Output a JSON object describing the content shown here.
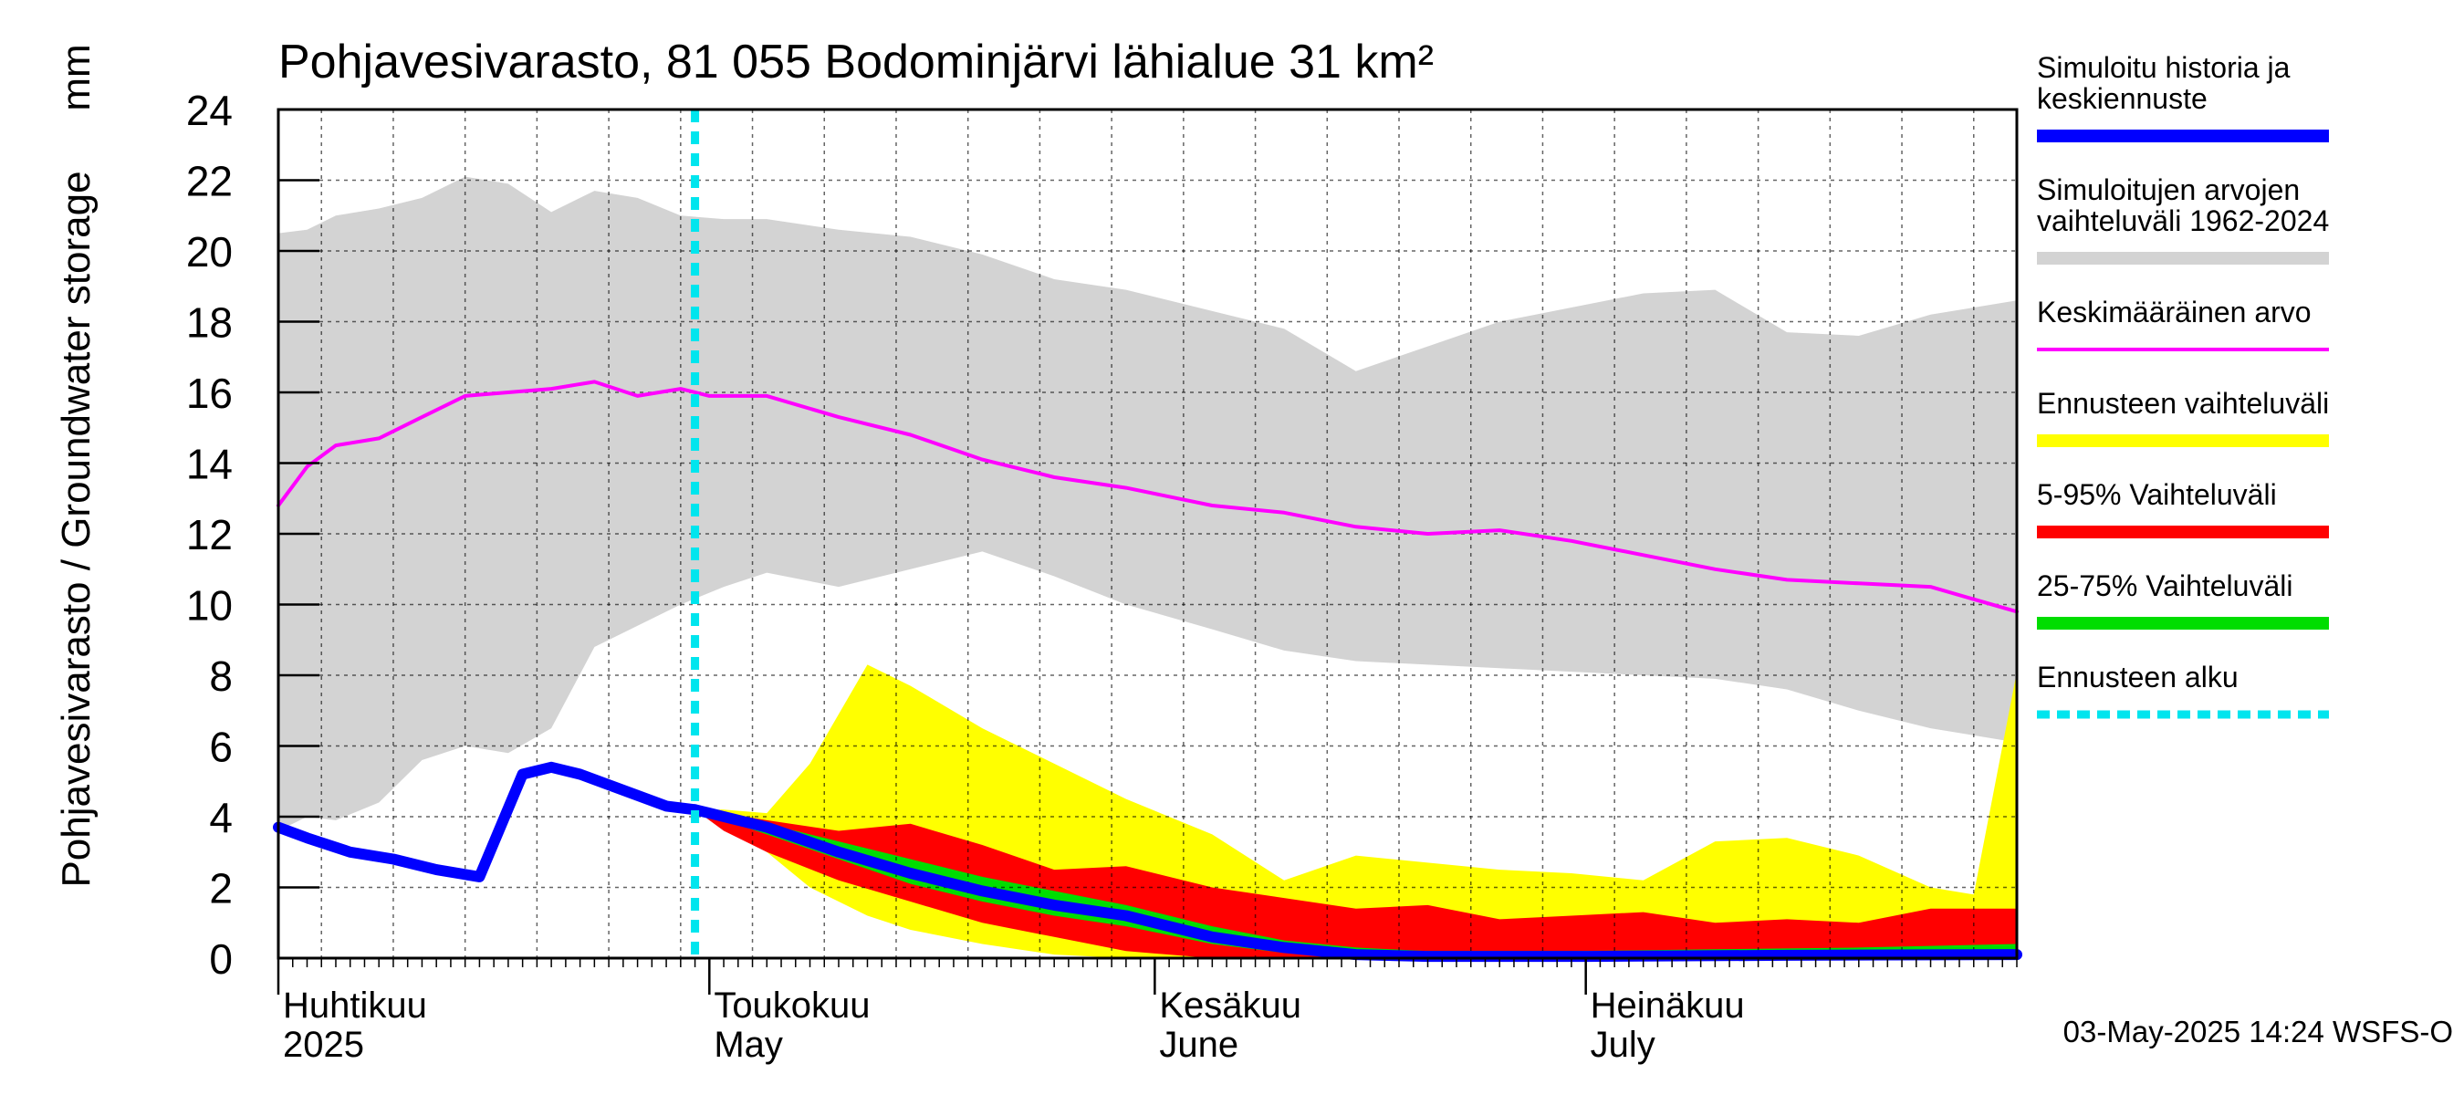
{
  "chart_data": {
    "type": "area",
    "title": "Pohjavesivarasto, 81 055 Bodominjärvi lähialue 31 km²",
    "ylabel": "Pohjavesivarasto / Groundwater storage",
    "yunit": "mm",
    "ylim": [
      0,
      24
    ],
    "yticks": [
      0,
      2,
      4,
      6,
      8,
      10,
      12,
      14,
      16,
      18,
      20,
      22,
      24
    ],
    "xlim": [
      "2025-04-01",
      "2025-07-31"
    ],
    "month_labels": [
      {
        "fi": "Huhtikuu",
        "en": "2025",
        "date": "2025-04-01"
      },
      {
        "fi": "Toukokuu",
        "en": "May",
        "date": "2025-05-01"
      },
      {
        "fi": "Kesäkuu",
        "en": "June",
        "date": "2025-06-01"
      },
      {
        "fi": "Heinäkuu",
        "en": "July",
        "date": "2025-07-01"
      }
    ],
    "forecast_start": "2025-04-30",
    "footer": "03-May-2025 14:24 WSFS-O",
    "legend": [
      {
        "label": "Simuloitu historia ja keskiennuste",
        "color": "#0000ff",
        "style": "thick"
      },
      {
        "label": "Simuloitujen arvojen vaihteluväli 1962-2024",
        "color": "#d3d3d3",
        "style": "band"
      },
      {
        "label": "Keskimääräinen arvo",
        "color": "#ff00ff",
        "style": "line"
      },
      {
        "label": "Ennusteen vaihteluväli",
        "color": "#ffff00",
        "style": "band"
      },
      {
        "label": "5-95% Vaihteluväli",
        "color": "#ff0000",
        "style": "band"
      },
      {
        "label": "25-75% Vaihteluväli",
        "color": "#00dd00",
        "style": "band"
      },
      {
        "label": "Ennusteen alku",
        "color": "#00e5ee",
        "style": "dashed"
      }
    ],
    "series": {
      "hist_range": {
        "x": [
          "2025-04-01",
          "2025-04-03",
          "2025-04-05",
          "2025-04-08",
          "2025-04-11",
          "2025-04-14",
          "2025-04-17",
          "2025-04-20",
          "2025-04-23",
          "2025-04-26",
          "2025-04-29",
          "2025-05-02",
          "2025-05-05",
          "2025-05-10",
          "2025-05-15",
          "2025-05-20",
          "2025-05-25",
          "2025-05-30",
          "2025-06-05",
          "2025-06-10",
          "2025-06-15",
          "2025-06-20",
          "2025-06-25",
          "2025-06-30",
          "2025-07-05",
          "2025-07-10",
          "2025-07-15",
          "2025-07-20",
          "2025-07-25",
          "2025-07-31"
        ],
        "upper": [
          20.5,
          20.6,
          21.0,
          21.2,
          21.5,
          22.1,
          21.9,
          21.1,
          21.7,
          21.5,
          21.0,
          20.9,
          20.9,
          20.6,
          20.4,
          19.9,
          19.2,
          18.9,
          18.3,
          17.8,
          16.6,
          17.3,
          18.0,
          18.4,
          18.8,
          18.9,
          17.7,
          17.6,
          18.2,
          18.6
        ],
        "lower": [
          3.6,
          4.0,
          3.9,
          4.4,
          5.6,
          6.0,
          5.8,
          6.5,
          8.8,
          9.4,
          10.0,
          10.5,
          10.9,
          10.5,
          11.0,
          11.5,
          10.8,
          10.0,
          9.3,
          8.7,
          8.4,
          8.3,
          8.2,
          8.1,
          8.0,
          7.9,
          7.6,
          7.0,
          6.5,
          6.1
        ]
      },
      "mean": {
        "x": [
          "2025-04-01",
          "2025-04-03",
          "2025-04-05",
          "2025-04-08",
          "2025-04-11",
          "2025-04-14",
          "2025-04-17",
          "2025-04-20",
          "2025-04-23",
          "2025-04-26",
          "2025-04-29",
          "2025-05-01",
          "2025-05-05",
          "2025-05-10",
          "2025-05-15",
          "2025-05-20",
          "2025-05-25",
          "2025-05-30",
          "2025-06-05",
          "2025-06-10",
          "2025-06-15",
          "2025-06-20",
          "2025-06-25",
          "2025-06-30",
          "2025-07-05",
          "2025-07-10",
          "2025-07-15",
          "2025-07-20",
          "2025-07-25",
          "2025-07-31"
        ],
        "values": [
          12.8,
          13.9,
          14.5,
          14.7,
          15.3,
          15.9,
          16.0,
          16.1,
          16.3,
          15.9,
          16.1,
          15.9,
          15.9,
          15.3,
          14.8,
          14.1,
          13.6,
          13.3,
          12.8,
          12.6,
          12.2,
          12.0,
          12.1,
          11.8,
          11.4,
          11.0,
          10.7,
          10.6,
          10.5,
          9.8
        ]
      },
      "history": {
        "x": [
          "2025-04-01",
          "2025-04-03",
          "2025-04-06",
          "2025-04-09",
          "2025-04-12",
          "2025-04-15",
          "2025-04-18",
          "2025-04-20",
          "2025-04-22",
          "2025-04-24",
          "2025-04-26",
          "2025-04-28",
          "2025-04-30"
        ],
        "values": [
          3.7,
          3.4,
          3.0,
          2.8,
          2.5,
          2.3,
          5.2,
          5.4,
          5.2,
          4.9,
          4.6,
          4.3,
          4.2
        ]
      },
      "forecast_median": {
        "x": [
          "2025-04-30",
          "2025-05-01",
          "2025-05-05",
          "2025-05-10",
          "2025-05-15",
          "2025-05-20",
          "2025-05-25",
          "2025-05-30",
          "2025-06-05",
          "2025-06-10",
          "2025-06-15",
          "2025-06-20",
          "2025-07-01",
          "2025-07-15",
          "2025-07-31"
        ],
        "values": [
          4.2,
          4.1,
          3.7,
          3.0,
          2.4,
          1.9,
          1.5,
          1.2,
          0.6,
          0.3,
          0.1,
          0.05,
          0.05,
          0.08,
          0.1
        ]
      },
      "forecast_range": {
        "x": [
          "2025-04-30",
          "2025-05-02",
          "2025-05-05",
          "2025-05-08",
          "2025-05-12",
          "2025-05-15",
          "2025-05-20",
          "2025-05-25",
          "2025-05-30",
          "2025-06-05",
          "2025-06-10",
          "2025-06-15",
          "2025-06-20",
          "2025-06-25",
          "2025-06-30",
          "2025-07-05",
          "2025-07-10",
          "2025-07-15",
          "2025-07-20",
          "2025-07-25",
          "2025-07-28",
          "2025-07-31"
        ],
        "upper": [
          4.2,
          4.2,
          4.1,
          5.5,
          8.3,
          7.7,
          6.5,
          5.5,
          4.5,
          3.5,
          2.2,
          2.9,
          2.7,
          2.5,
          2.4,
          2.2,
          3.3,
          3.4,
          2.9,
          2.0,
          1.8,
          8.1
        ],
        "lower": [
          4.2,
          3.8,
          3.0,
          2.0,
          1.2,
          0.8,
          0.4,
          0.1,
          0,
          0,
          0,
          0,
          0,
          0,
          0,
          0,
          0,
          0,
          0,
          0,
          0,
          0
        ]
      },
      "p5_95": {
        "x": [
          "2025-04-30",
          "2025-05-02",
          "2025-05-05",
          "2025-05-10",
          "2025-05-15",
          "2025-05-20",
          "2025-05-25",
          "2025-05-30",
          "2025-06-05",
          "2025-06-10",
          "2025-06-15",
          "2025-06-20",
          "2025-06-25",
          "2025-06-30",
          "2025-07-05",
          "2025-07-10",
          "2025-07-15",
          "2025-07-20",
          "2025-07-25",
          "2025-07-31"
        ],
        "upper": [
          4.2,
          4.1,
          3.9,
          3.6,
          3.8,
          3.2,
          2.5,
          2.6,
          2.0,
          1.7,
          1.4,
          1.5,
          1.1,
          1.2,
          1.3,
          1.0,
          1.1,
          1.0,
          1.4,
          1.4
        ],
        "lower": [
          4.2,
          3.6,
          3.0,
          2.2,
          1.6,
          1.0,
          0.6,
          0.2,
          0,
          0,
          0,
          0,
          0,
          0,
          0,
          0,
          0,
          0,
          0,
          0
        ]
      },
      "p25_75": {
        "x": [
          "2025-04-30",
          "2025-05-02",
          "2025-05-05",
          "2025-05-10",
          "2025-05-15",
          "2025-05-20",
          "2025-05-25",
          "2025-05-30",
          "2025-06-05",
          "2025-06-10",
          "2025-06-15",
          "2025-06-20",
          "2025-06-30",
          "2025-07-10",
          "2025-07-20",
          "2025-07-31"
        ],
        "upper": [
          4.2,
          4.1,
          3.8,
          3.3,
          2.8,
          2.3,
          1.9,
          1.5,
          0.9,
          0.5,
          0.3,
          0.2,
          0.2,
          0.25,
          0.3,
          0.4
        ],
        "lower": [
          4.2,
          3.9,
          3.5,
          2.8,
          2.1,
          1.6,
          1.2,
          0.9,
          0.4,
          0.15,
          0.05,
          0,
          0,
          0,
          0,
          0
        ]
      }
    }
  }
}
